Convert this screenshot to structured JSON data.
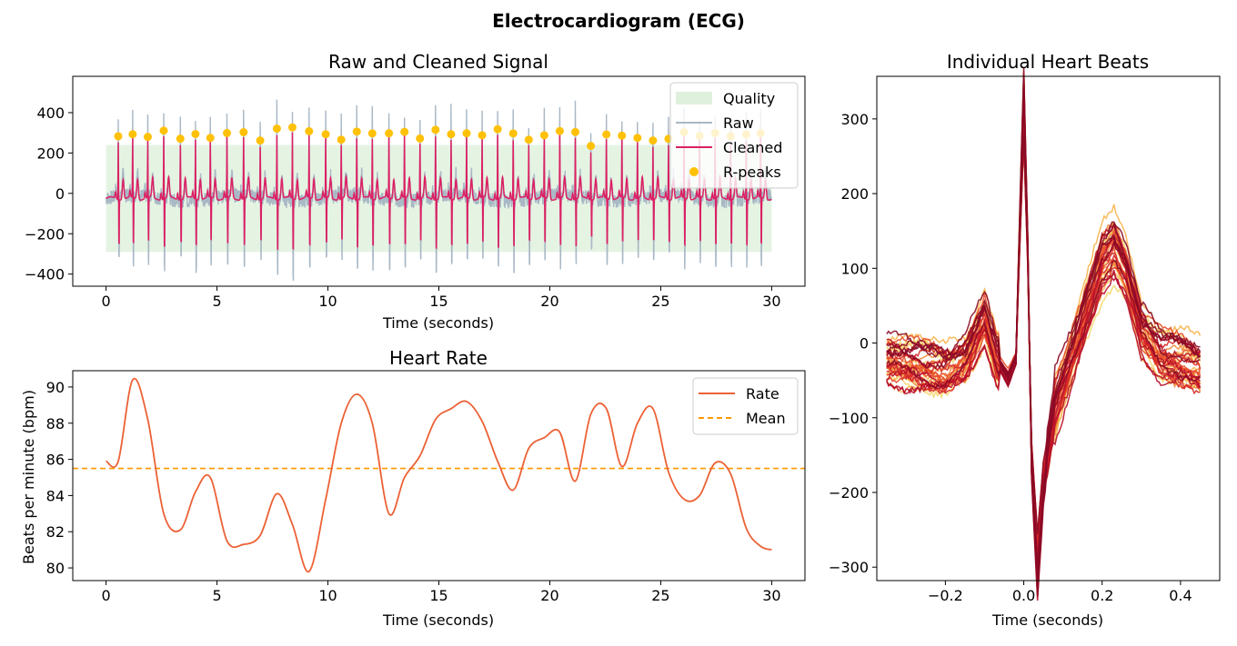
{
  "figure": {
    "title": "Electrocardiogram (ECG)"
  },
  "chart_data": [
    {
      "id": "signal",
      "type": "line",
      "title": "Raw and Cleaned Signal",
      "xlabel": "Time (seconds)",
      "ylabel": "",
      "xlim": [
        -1.5,
        31.5
      ],
      "ylim": [
        -460,
        580
      ],
      "xticks": [
        0,
        5,
        10,
        15,
        20,
        25,
        30
      ],
      "yticks": [
        -400,
        -200,
        0,
        200,
        400
      ],
      "legend_position": "top-right",
      "legend": [
        "Quality",
        "Raw",
        "Cleaned",
        "R-peaks"
      ],
      "colors": {
        "quality": "#dff0dc",
        "raw": "#a9b8c5",
        "cleaned": "#dc2063",
        "rpeaks": "#ffc107"
      },
      "quality_band": {
        "top": 240,
        "bottom": -290
      },
      "r_peaks": {
        "x": [
          0.55,
          1.2,
          1.88,
          2.6,
          3.35,
          4.03,
          4.7,
          5.45,
          6.2,
          6.95,
          7.7,
          8.4,
          9.15,
          9.9,
          10.6,
          11.3,
          12.0,
          12.75,
          13.45,
          14.15,
          14.85,
          15.55,
          16.25,
          16.95,
          17.65,
          18.35,
          19.05,
          19.75,
          20.45,
          21.15,
          21.85,
          22.55,
          23.25,
          23.95,
          24.65,
          25.35,
          26.05,
          26.75,
          27.45,
          28.15,
          28.85,
          29.5
        ],
        "y": [
          283,
          293,
          280,
          311,
          271,
          294,
          275,
          299,
          303,
          262,
          321,
          327,
          308,
          293,
          266,
          306,
          297,
          298,
          305,
          272,
          315,
          293,
          298,
          288,
          318,
          297,
          266,
          288,
          309,
          304,
          235,
          292,
          286,
          275,
          262,
          270,
          303,
          285,
          299,
          283,
          292,
          298
        ]
      }
    },
    {
      "id": "rate",
      "type": "line",
      "title": "Heart Rate",
      "xlabel": "Time (seconds)",
      "ylabel": "Beats per minute (bpm)",
      "xlim": [
        -1.5,
        31.5
      ],
      "ylim": [
        79.3,
        90.9
      ],
      "xticks": [
        0,
        5,
        10,
        15,
        20,
        25,
        30
      ],
      "yticks": [
        80,
        82,
        84,
        86,
        88,
        90
      ],
      "legend_position": "top-right",
      "colors": {
        "rate": "#ec6135",
        "mean": "#ff9800"
      },
      "series": [
        {
          "name": "Rate",
          "x": [
            0,
            0.55,
            1.2,
            1.88,
            2.6,
            3.35,
            4.03,
            4.7,
            5.45,
            6.2,
            6.95,
            7.7,
            8.4,
            9.15,
            9.9,
            10.6,
            11.3,
            12.0,
            12.75,
            13.45,
            14.15,
            14.85,
            15.55,
            16.25,
            16.95,
            17.65,
            18.35,
            19.05,
            19.75,
            20.45,
            21.15,
            21.85,
            22.55,
            23.25,
            23.95,
            24.65,
            25.35,
            26.05,
            26.75,
            27.45,
            28.15,
            28.85,
            29.5,
            30.0
          ],
          "y": [
            85.9,
            85.9,
            90.4,
            88.2,
            83.0,
            82.1,
            84.2,
            85.0,
            81.5,
            81.3,
            81.8,
            84.1,
            82.4,
            79.8,
            83.8,
            88.0,
            89.6,
            88.0,
            83.0,
            85.0,
            86.2,
            88.2,
            88.8,
            89.2,
            88.1,
            85.9,
            84.3,
            86.6,
            87.2,
            87.5,
            84.8,
            88.5,
            88.8,
            85.6,
            88.0,
            88.8,
            85.3,
            83.8,
            84.0,
            85.8,
            85.2,
            82.2,
            81.2,
            81.0
          ]
        },
        {
          "name": "Mean",
          "value": 85.5
        }
      ]
    },
    {
      "id": "beats",
      "type": "line",
      "title": "Individual Heart Beats",
      "xlabel": "Time (seconds)",
      "ylabel": "",
      "xlim": [
        -0.375,
        0.5
      ],
      "ylim": [
        -318,
        357
      ],
      "xticks": [
        -0.2,
        0.0,
        0.2,
        0.4
      ],
      "yticks": [
        -300,
        -200,
        -100,
        0,
        100,
        200,
        300
      ],
      "beat_count": 42,
      "template": {
        "x": [
          -0.35,
          -0.3,
          -0.25,
          -0.2,
          -0.15,
          -0.1,
          -0.07,
          -0.04,
          -0.02,
          -0.01,
          0.0,
          0.01,
          0.02,
          0.035,
          0.05,
          0.08,
          0.12,
          0.17,
          0.2,
          0.23,
          0.26,
          0.3,
          0.35,
          0.4,
          0.45
        ],
        "y": [
          -20,
          -25,
          -30,
          -35,
          -20,
          35,
          -20,
          -45,
          -20,
          150,
          305,
          120,
          -150,
          -285,
          -180,
          -80,
          -20,
          60,
          110,
          130,
          100,
          20,
          -15,
          -20,
          -30
        ]
      },
      "colors": [
        "#f5d76e",
        "#f7b54e",
        "#f08a3c",
        "#e8502b",
        "#d62a28",
        "#b8102a",
        "#8b0a26"
      ]
    }
  ]
}
